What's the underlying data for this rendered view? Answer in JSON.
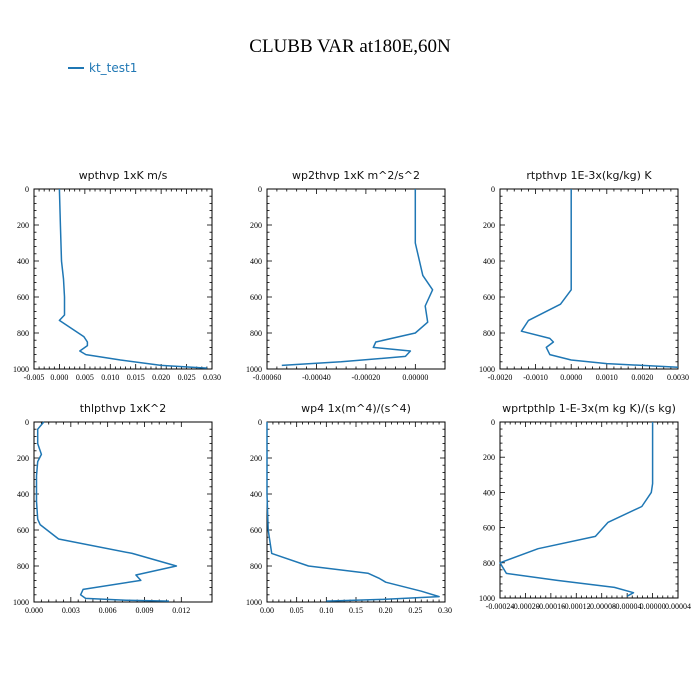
{
  "title": "CLUBB VAR at180E,60N",
  "legend": {
    "label": "kt_test1",
    "color": "#1f77b4"
  },
  "chart_data": [
    {
      "type": "line",
      "title": "wpthvp  1xK m/s",
      "xlim": [
        -0.005,
        0.03
      ],
      "ylim": [
        0,
        1000
      ],
      "y_inverted": true,
      "xticks": [
        "-0.005",
        "0.000",
        "0.005",
        "0.010",
        "0.015",
        "0.020",
        "0.025",
        "0.030"
      ],
      "yticks": [
        "0",
        "200",
        "400",
        "600",
        "800",
        "1000"
      ],
      "x": [
        0.0,
        0.0002,
        0.0004,
        0.0008,
        0.001,
        0.001,
        0.0,
        0.0048,
        0.0055,
        0.0055,
        0.004,
        0.0052,
        0.012,
        0.02,
        0.029
      ],
      "y": [
        0,
        200,
        400,
        500,
        600,
        700,
        730,
        820,
        850,
        870,
        900,
        920,
        950,
        980,
        995
      ]
    },
    {
      "type": "line",
      "title": "wp2thvp  1xK m^2/s^2",
      "xlim": [
        -0.0006,
        0.00012
      ],
      "ylim": [
        0,
        1000
      ],
      "y_inverted": true,
      "xticks": [
        "-0.00060",
        "-0.00040",
        "-0.00020",
        "0.00000"
      ],
      "yticks": [
        "0",
        "200",
        "400",
        "600",
        "800",
        "1000"
      ],
      "x": [
        0.0,
        0.0,
        0.0,
        3e-05,
        7e-05,
        4e-05,
        5e-05,
        0.0,
        -0.00016,
        -0.00017,
        -2e-05,
        -4e-05,
        -0.0003,
        -0.00054
      ],
      "y": [
        0,
        200,
        300,
        480,
        560,
        650,
        740,
        800,
        850,
        880,
        900,
        930,
        960,
        980
      ]
    },
    {
      "type": "line",
      "title": "rtpthvp  1E-3x(kg/kg) K",
      "xlim": [
        -0.002,
        0.003
      ],
      "ylim": [
        0,
        1000
      ],
      "y_inverted": true,
      "xticks": [
        "-0.0020",
        "-0.0010",
        "0.0000",
        "0.0010",
        "0.0020",
        "0.0030"
      ],
      "yticks": [
        "0",
        "200",
        "400",
        "600",
        "800",
        "1000"
      ],
      "x": [
        0.0,
        0.0,
        0.0,
        0.0,
        -0.0003,
        -0.0012,
        -0.0014,
        -0.0006,
        -0.0005,
        -0.0007,
        -0.0006,
        0.0,
        0.001,
        0.003
      ],
      "y": [
        0,
        200,
        400,
        560,
        640,
        730,
        790,
        830,
        850,
        880,
        920,
        950,
        970,
        990
      ]
    },
    {
      "type": "line",
      "title": "thlpthvp  1xK^2",
      "xlim": [
        0.0,
        0.0145
      ],
      "ylim": [
        0,
        1000
      ],
      "y_inverted": true,
      "xticks": [
        "0.000",
        "0.003",
        "0.006",
        "0.009",
        "0.012"
      ],
      "yticks": [
        "0",
        "200",
        "400",
        "600",
        "800",
        "1000"
      ],
      "x": [
        0.0008,
        0.0003,
        0.0003,
        0.0006,
        0.0003,
        0.0002,
        0.0002,
        0.0003,
        0.0005,
        0.002,
        0.008,
        0.0116,
        0.0083,
        0.0087,
        0.004,
        0.0038,
        0.0042,
        0.0075,
        0.011
      ],
      "y": [
        0,
        40,
        120,
        180,
        220,
        300,
        440,
        540,
        570,
        650,
        730,
        800,
        850,
        880,
        930,
        960,
        980,
        990,
        995
      ]
    },
    {
      "type": "line",
      "title": "wp4  1x(m^4)/(s^4)",
      "xlim": [
        0.0,
        0.3
      ],
      "ylim": [
        0,
        1000
      ],
      "y_inverted": true,
      "xticks": [
        "0.00",
        "0.05",
        "0.10",
        "0.15",
        "0.20",
        "0.25",
        "0.30"
      ],
      "yticks": [
        "0",
        "200",
        "400",
        "600",
        "800",
        "1000"
      ],
      "x": [
        0.0,
        0.0,
        0.0,
        0.002,
        0.008,
        0.07,
        0.17,
        0.19,
        0.2,
        0.26,
        0.29,
        0.2,
        0.1
      ],
      "y": [
        0,
        200,
        400,
        600,
        730,
        800,
        840,
        870,
        890,
        940,
        970,
        985,
        995
      ]
    },
    {
      "type": "line",
      "title": "wprtpthlp  1-E-3x(m kg K)/(s kg)",
      "xlim": [
        -0.00024,
        4e-05
      ],
      "ylim": [
        0,
        1000
      ],
      "y_inverted": true,
      "xticks": [
        "-0.00024",
        "-0.00020",
        "-0.00016",
        "-0.00012",
        "-0.00008",
        "-0.00004",
        "0.00000",
        "0.00004"
      ],
      "yticks": [
        "0",
        "200",
        "400",
        "600",
        "800",
        "1000"
      ],
      "x": [
        0.0,
        0.0,
        0.0,
        -2e-06,
        -1.7e-05,
        -7e-05,
        -9e-05,
        -0.00018,
        -0.00024,
        -0.00023,
        -0.00015,
        -6e-05,
        -3e-05,
        -4e-05
      ],
      "y": [
        0,
        200,
        350,
        400,
        480,
        570,
        650,
        720,
        800,
        860,
        900,
        940,
        970,
        990
      ]
    }
  ]
}
